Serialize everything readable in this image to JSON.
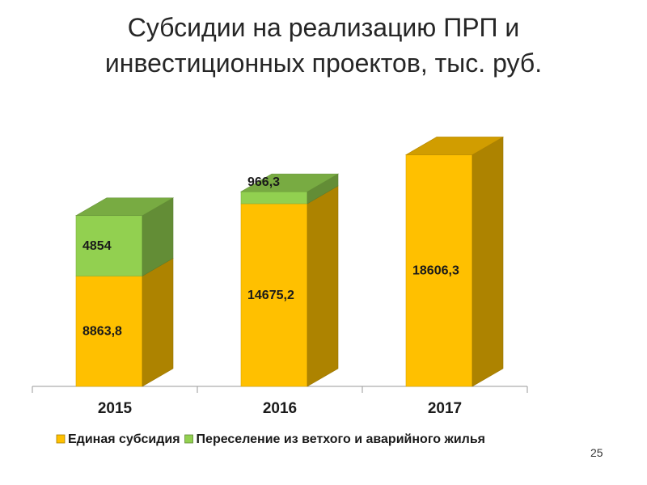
{
  "slide": {
    "page_number": "25"
  },
  "chart_data": {
    "type": "bar",
    "stacked": true,
    "style": "3d",
    "title": "Субсидии на реализацию ПРП и инвестиционных проектов, тыс. руб.",
    "xlabel": "",
    "ylabel": "",
    "categories": [
      "2015",
      "2016",
      "2017"
    ],
    "series": [
      {
        "name": "Единая субсидия",
        "values": [
          8863.8,
          14675.2,
          18606.3
        ],
        "labels": [
          "8863,8",
          "14675,2",
          "18606,3"
        ],
        "color": "#FFC000"
      },
      {
        "name": "Переселение из ветхого и аварийного жилья",
        "values": [
          4854,
          966.3,
          null
        ],
        "labels": [
          "4854",
          "966,3",
          ""
        ],
        "color": "#92D050"
      }
    ],
    "ylim": [
      0,
      20000
    ],
    "grid": false,
    "legend": "bottom"
  }
}
